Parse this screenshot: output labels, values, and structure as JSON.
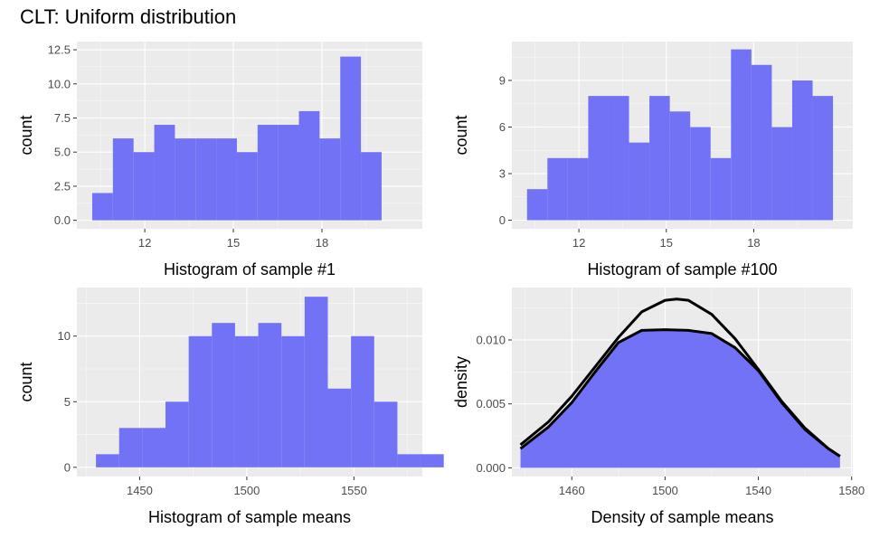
{
  "title": "CLT: Uniform distribution",
  "colors": {
    "panel": "#ebebeb",
    "grid_major": "#ffffff",
    "fill": "#7272f6",
    "curve": "#000000",
    "tick_text": "#4d4d4d"
  },
  "chart_data": [
    {
      "id": "hist1",
      "type": "bar",
      "xlabel": "Histogram of sample #1",
      "ylabel": "count",
      "xlim": [
        9.7,
        21.4
      ],
      "ylim": [
        -0.62,
        13.1
      ],
      "xticks": [
        12,
        15,
        18
      ],
      "xtick_labels": [
        "12",
        "15",
        "18"
      ],
      "yticks": [
        0,
        2.5,
        5,
        7.5,
        10,
        12.5
      ],
      "ytick_labels": [
        "0.0",
        "2.5",
        "5.0",
        "7.5",
        "10.0",
        "12.5"
      ],
      "bin_start": 10.22,
      "bin_width": 0.7,
      "values": [
        2,
        6,
        5,
        7,
        6,
        6,
        6,
        5,
        7,
        7,
        8,
        6,
        12,
        5
      ]
    },
    {
      "id": "hist100",
      "type": "bar",
      "xlabel": "Histogram of sample #100",
      "ylabel": "count",
      "xlim": [
        9.7,
        21.4
      ],
      "ylim": [
        -0.55,
        11.5
      ],
      "xticks": [
        12,
        15,
        18
      ],
      "xtick_labels": [
        "12",
        "15",
        "18"
      ],
      "yticks": [
        0,
        3,
        6,
        9
      ],
      "ytick_labels": [
        "0",
        "3",
        "6",
        "9"
      ],
      "bin_start": 10.22,
      "bin_width": 0.7,
      "values": [
        2,
        4,
        4,
        8,
        8,
        5,
        8,
        7,
        6,
        4,
        11,
        10,
        6,
        9,
        8
      ]
    },
    {
      "id": "means",
      "type": "bar",
      "xlabel": "Histogram of sample means",
      "ylabel": "count",
      "xlim": [
        1420.7,
        1581.9
      ],
      "ylim": [
        -0.7,
        13.7
      ],
      "xticks": [
        1450,
        1500,
        1550
      ],
      "xtick_labels": [
        "1450",
        "1500",
        "1550"
      ],
      "yticks": [
        0,
        5,
        10
      ],
      "ytick_labels": [
        "0",
        "5",
        "10"
      ],
      "bin_start": 1429.6,
      "bin_width": 10.82,
      "values": [
        1,
        3,
        3,
        5,
        10,
        11,
        10,
        11,
        10,
        13,
        6,
        10,
        5,
        1,
        1
      ]
    },
    {
      "id": "density",
      "type": "area",
      "xlabel": "Density of sample means",
      "ylabel": "density",
      "xlim": [
        1434.3,
        1580.5
      ],
      "ylim": [
        -0.00068,
        0.0141
      ],
      "xticks": [
        1460,
        1500,
        1540,
        1580
      ],
      "xtick_labels": [
        "1460",
        "1500",
        "1540",
        "1580"
      ],
      "yticks": [
        0,
        0.005,
        0.01
      ],
      "ytick_labels": [
        "0.000",
        "0.005",
        "0.010"
      ],
      "kde": {
        "x": [
          1438,
          1450,
          1460,
          1470,
          1480,
          1490,
          1500,
          1510,
          1520,
          1530,
          1540,
          1550,
          1560,
          1570,
          1575
        ],
        "y": [
          0.0015,
          0.0032,
          0.0051,
          0.0075,
          0.0098,
          0.01075,
          0.0108,
          0.01075,
          0.0105,
          0.0094,
          0.0076,
          0.0051,
          0.003,
          0.0015,
          0.0009
        ]
      },
      "normal": {
        "x": [
          1438,
          1450,
          1460,
          1470,
          1480,
          1490,
          1500,
          1505,
          1510,
          1520,
          1530,
          1540,
          1550,
          1560,
          1570,
          1575
        ],
        "y": [
          0.0018,
          0.0036,
          0.0056,
          0.0079,
          0.0102,
          0.0122,
          0.0131,
          0.0132,
          0.0131,
          0.012,
          0.0101,
          0.0077,
          0.0052,
          0.0031,
          0.0015,
          0.0009
        ]
      }
    }
  ]
}
